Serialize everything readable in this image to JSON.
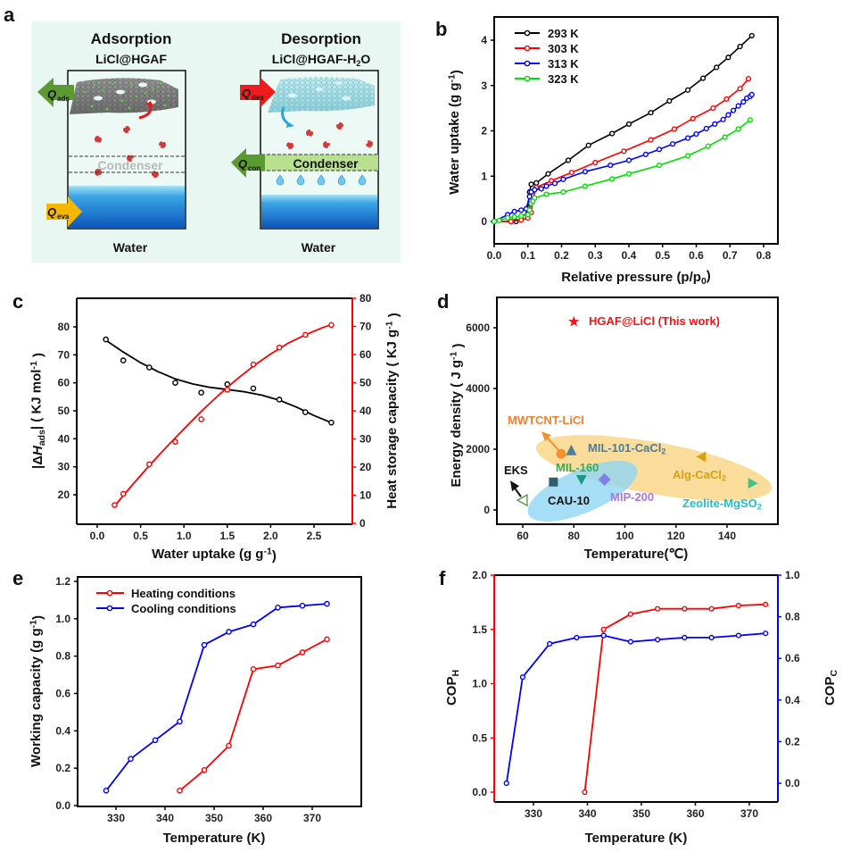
{
  "figure_labels": {
    "a": "a",
    "b": "b",
    "c": "c",
    "d": "d",
    "e": "e",
    "f": "f"
  },
  "panel_a": {
    "left": {
      "title": "Adsorption",
      "subtitle": "LiCl@HGAF",
      "q_top": "Q",
      "q_top_sub": "ads",
      "q_bottom": "Q",
      "q_bottom_sub": "eva",
      "condenser": "Condenser",
      "bottom_label": "Water"
    },
    "right": {
      "title": "Desorption",
      "subtitle": "LiCl@HGAF-H",
      "subtitle_sub": "2",
      "subtitle_tail": "O",
      "q_top": "Q",
      "q_top_sub": "des",
      "q_mid": "Q",
      "q_mid_sub": "con",
      "condenser": "Condenser",
      "bottom_label": "Water"
    },
    "colors": {
      "background": "#e8f7f1",
      "ads_arrow": "#5a9a30",
      "eva_arrow": "#f5b800",
      "des_arrow": "#ee1c1c",
      "con_arrow": "#5a9a30",
      "condenser_band": "#b9e08e",
      "water_top": "#8fd6f2",
      "water_bottom": "#0f5fc0"
    }
  },
  "chart_data": [
    {
      "id": "b",
      "type": "line",
      "xlabel": "Relative pressure (p/p",
      "xlabel_sub": "0",
      "xlabel_tail": ")",
      "ylabel": "Water uptake (g g",
      "ylabel_sup": "-1",
      "ylabel_tail": ")",
      "xlim": [
        0,
        0.85
      ],
      "ylim": [
        -0.5,
        4.5
      ],
      "xticks": [
        0.0,
        0.1,
        0.2,
        0.3,
        0.4,
        0.5,
        0.6,
        0.7,
        0.8
      ],
      "xtick_labels": [
        "0.0",
        "0.1",
        "0.2",
        "0.3",
        "0.4",
        "0.5",
        "0.6",
        "0.7",
        "0.8"
      ],
      "yticks": [
        0,
        1,
        2,
        3,
        4
      ],
      "ytick_labels": [
        "0",
        "1",
        "2",
        "3",
        "4"
      ],
      "legend_position": "top-left",
      "series": [
        {
          "name": "293 K",
          "color": "#000000",
          "x": [
            0.0,
            0.05,
            0.065,
            0.09,
            0.1,
            0.105,
            0.11,
            0.125,
            0.16,
            0.22,
            0.28,
            0.35,
            0.4,
            0.465,
            0.52,
            0.575,
            0.62,
            0.66,
            0.695,
            0.73,
            0.765
          ],
          "y": [
            0.0,
            0.0,
            0.0,
            0.1,
            0.3,
            0.65,
            0.82,
            0.85,
            1.05,
            1.35,
            1.68,
            1.94,
            2.15,
            2.4,
            2.66,
            2.9,
            3.16,
            3.4,
            3.62,
            3.86,
            4.1
          ]
        },
        {
          "name": "303 K",
          "color": "#ff0000",
          "x": [
            0.0,
            0.05,
            0.08,
            0.1,
            0.11,
            0.115,
            0.125,
            0.17,
            0.23,
            0.3,
            0.385,
            0.465,
            0.535,
            0.59,
            0.65,
            0.69,
            0.73,
            0.755
          ],
          "y": [
            0.0,
            0.0,
            0.03,
            0.08,
            0.2,
            0.5,
            0.75,
            0.9,
            1.08,
            1.3,
            1.55,
            1.8,
            2.04,
            2.27,
            2.5,
            2.7,
            2.93,
            3.15
          ]
        },
        {
          "name": "313 K",
          "color": "#0000ff",
          "x": [
            0.0,
            0.04,
            0.06,
            0.08,
            0.095,
            0.105,
            0.11,
            0.12,
            0.14,
            0.155,
            0.18,
            0.205,
            0.27,
            0.345,
            0.4,
            0.45,
            0.49,
            0.53,
            0.575,
            0.6,
            0.63,
            0.655,
            0.68,
            0.695,
            0.71,
            0.725,
            0.74,
            0.75,
            0.76,
            0.765
          ],
          "y": [
            0.0,
            0.15,
            0.22,
            0.25,
            0.28,
            0.55,
            0.65,
            0.7,
            0.72,
            0.78,
            0.84,
            0.93,
            1.1,
            1.24,
            1.35,
            1.48,
            1.59,
            1.71,
            1.84,
            1.93,
            2.05,
            2.15,
            2.25,
            2.35,
            2.45,
            2.55,
            2.64,
            2.72,
            2.76,
            2.8
          ]
        },
        {
          "name": "323 K",
          "color": "#00e000",
          "x": [
            0.0,
            0.015,
            0.04,
            0.06,
            0.08,
            0.1,
            0.105,
            0.11,
            0.115,
            0.12,
            0.155,
            0.205,
            0.27,
            0.35,
            0.4,
            0.49,
            0.575,
            0.635,
            0.685,
            0.725,
            0.76
          ],
          "y": [
            0.0,
            0.02,
            0.08,
            0.1,
            0.12,
            0.15,
            0.25,
            0.4,
            0.45,
            0.52,
            0.6,
            0.65,
            0.78,
            0.94,
            1.05,
            1.24,
            1.45,
            1.66,
            1.86,
            2.04,
            2.24
          ]
        }
      ]
    },
    {
      "id": "c",
      "type": "scatter",
      "xlabel": "Water uptake (g g",
      "xlabel_sup": "-1",
      "xlabel_tail": ")",
      "ylabel_left": "|ΔH",
      "ylabel_left_sub": "ads",
      "ylabel_left_tail": "| ( KJ mol",
      "ylabel_left_sup": "-1",
      "ylabel_left_end": " )",
      "ylabel_right": "Heat storage capacity ( KJ g",
      "ylabel_right_sup": "-1",
      "ylabel_right_tail": " )",
      "xlim": [
        -0.25,
        2.95
      ],
      "ylim_left": [
        10,
        90
      ],
      "ylim_right": [
        0,
        80
      ],
      "xticks": [
        0.0,
        0.5,
        1.0,
        1.5,
        2.0,
        2.5
      ],
      "xtick_labels": [
        "0.0",
        "0.5",
        "1.0",
        "1.5",
        "2.0",
        "2.5"
      ],
      "yticks_left": [
        20,
        30,
        40,
        50,
        60,
        70,
        80
      ],
      "ytick_left_labels": [
        "20",
        "30",
        "40",
        "50",
        "60",
        "70",
        "80"
      ],
      "yticks_right": [
        0,
        10,
        20,
        30,
        40,
        50,
        60,
        70,
        80
      ],
      "ytick_right_labels": [
        "0",
        "10",
        "20",
        "30",
        "40",
        "50",
        "60",
        "70",
        "80"
      ],
      "series": [
        {
          "name": "|ΔHads|",
          "axis": "left",
          "color": "#000000",
          "x": [
            0.1,
            0.3,
            0.6,
            0.9,
            1.2,
            1.5,
            1.8,
            2.1,
            2.4,
            2.7
          ],
          "y": [
            75.5,
            68.0,
            65.5,
            60.0,
            56.5,
            59.5,
            58.0,
            54.0,
            49.5,
            45.8
          ],
          "fit_x": [
            0.1,
            0.3,
            0.5,
            0.7,
            0.9,
            1.1,
            1.3,
            1.5,
            1.7,
            1.9,
            2.1,
            2.3,
            2.5,
            2.7
          ],
          "fit_y": [
            75.2,
            71.0,
            67.2,
            64.0,
            61.4,
            59.6,
            58.4,
            57.6,
            56.8,
            55.6,
            53.8,
            51.3,
            48.3,
            45.8
          ]
        },
        {
          "name": "Heat storage capacity",
          "axis": "right",
          "color": "#ff0000",
          "x": [
            0.2,
            0.3,
            0.6,
            0.9,
            1.2,
            1.5,
            1.8,
            2.1,
            2.4,
            2.7
          ],
          "y": [
            6.5,
            10.5,
            21.0,
            29.0,
            37.0,
            47.5,
            56.5,
            62.5,
            67.0,
            70.5
          ],
          "fit_x": [
            0.2,
            0.4,
            0.6,
            0.8,
            1.0,
            1.2,
            1.4,
            1.6,
            1.8,
            2.0,
            2.2,
            2.4,
            2.6,
            2.7
          ],
          "fit_y": [
            6.2,
            13.5,
            20.5,
            27.2,
            33.6,
            39.8,
            45.6,
            51.0,
            55.9,
            60.2,
            64.0,
            67.0,
            69.6,
            70.6
          ]
        }
      ]
    },
    {
      "id": "d",
      "type": "scatter",
      "xlabel": "Temperature(℃)",
      "ylabel": "Energy density ( J g",
      "ylabel_sup": "-1",
      "ylabel_tail": " )",
      "xlim": [
        50,
        160
      ],
      "ylim": [
        -500,
        7000
      ],
      "xticks": [
        60,
        80,
        100,
        120,
        140
      ],
      "xtick_labels": [
        "60",
        "80",
        "100",
        "120",
        "140"
      ],
      "yticks": [
        0,
        2000,
        4000,
        6000
      ],
      "ytick_labels": [
        "0",
        "2000",
        "4000",
        "6000"
      ],
      "points": [
        {
          "name": "HGAF@LiCl (This work)",
          "x": 80,
          "y": 6200,
          "marker": "star",
          "color": "#ff1010",
          "label_color": "#ff1010"
        },
        {
          "name": "MWTCNT-LiCl",
          "x": 75,
          "y": 1850,
          "marker": "circle",
          "color": "#f5902e",
          "label_color": "#f08030"
        },
        {
          "name": "MIL-101-CaCl2",
          "x": 79,
          "y": 1950,
          "marker": "triangle-up",
          "color": "#4d7fa0",
          "label_color": "#507a9a"
        },
        {
          "name": "Alg-CaCl2",
          "x": 130,
          "y": 1750,
          "marker": "triangle-left",
          "color": "#d9a010",
          "label_color": "#d9a010"
        },
        {
          "name": "Zeolite-MgSO2",
          "x": 150,
          "y": 880,
          "marker": "triangle-right",
          "color": "#3ec48a",
          "label_color": "#20c0c8"
        },
        {
          "name": "MIL-160",
          "x": 83,
          "y": 1000,
          "marker": "triangle-down",
          "color": "#1e9a80",
          "label_color": "#3aaa58"
        },
        {
          "name": "MIP-200",
          "x": 92,
          "y": 1000,
          "marker": "diamond",
          "color": "#7f80e8",
          "label_color": "#a878e0"
        },
        {
          "name": "CAU-10",
          "x": 72,
          "y": 920,
          "marker": "square",
          "color": "#2e5d6e",
          "label_color": "#111111"
        },
        {
          "name": "EKS",
          "x": 60,
          "y": 320,
          "marker": "open-triangle-left",
          "color": "#4a9a40",
          "label_color": "#111111"
        }
      ],
      "label_text": {
        "hgaf": "HGAF@LiCl (This work)",
        "mwtcnt": "MWTCNT-LiCl",
        "mil101": "MIL-101-CaCl",
        "mil101_sub": "2",
        "alg": "Alg-CaCl",
        "alg_sub": "2",
        "zeolite": "Zeolite-MgSO",
        "zeolite_sub": "2",
        "mil160": "MIL-160",
        "mip200": "MIP-200",
        "cau10": "CAU-10",
        "eks": "EKS"
      },
      "regions": [
        {
          "name": "salt-composites",
          "color": "#f8d27a"
        },
        {
          "name": "mofs",
          "color": "#8fd6f2"
        }
      ]
    },
    {
      "id": "e",
      "type": "line",
      "xlabel": "Temperature  (K)",
      "ylabel": "Working capacity (g g",
      "ylabel_sup": "-1",
      "ylabel_tail": ")",
      "xlim": [
        321,
        380
      ],
      "ylim": [
        0,
        1.2
      ],
      "xticks": [
        330,
        340,
        350,
        360,
        370
      ],
      "xtick_labels": [
        "330",
        "340",
        "350",
        "360",
        "370"
      ],
      "yticks": [
        0.0,
        0.2,
        0.4,
        0.6,
        0.8,
        1.0,
        1.2
      ],
      "ytick_labels": [
        "0.0",
        "0.2",
        "0.4",
        "0.6",
        "0.8",
        "1.0",
        "1.2"
      ],
      "legend_position": "top-left",
      "series": [
        {
          "name": "Heating conditions",
          "color": "#ff0000",
          "x": [
            343,
            348,
            353,
            358,
            363,
            368,
            373
          ],
          "y": [
            0.08,
            0.19,
            0.32,
            0.73,
            0.75,
            0.82,
            0.89
          ]
        },
        {
          "name": "Cooling conditions",
          "color": "#0000ff",
          "x": [
            328,
            333,
            338,
            343,
            348,
            353,
            358,
            363,
            368,
            373
          ],
          "y": [
            0.08,
            0.25,
            0.35,
            0.45,
            0.86,
            0.93,
            0.97,
            1.06,
            1.07,
            1.08
          ]
        }
      ]
    },
    {
      "id": "f",
      "type": "line",
      "xlabel": "Temperature  (K)",
      "ylabel_left": "COP",
      "ylabel_left_sub": "H",
      "ylabel_right": "COP",
      "ylabel_right_sub": "C",
      "xlim": [
        322,
        376
      ],
      "ylim_left": [
        -0.1,
        2.0
      ],
      "ylim_right": [
        -0.05,
        1.0
      ],
      "xticks": [
        330,
        340,
        350,
        360,
        370
      ],
      "xtick_labels": [
        "330",
        "340",
        "350",
        "360",
        "370"
      ],
      "yticks_left": [
        0.0,
        0.5,
        1.0,
        1.5,
        2.0
      ],
      "ytick_left_labels": [
        "0.0",
        "0.5",
        "1.0",
        "1.5",
        "2.0"
      ],
      "yticks_right": [
        0.0,
        0.2,
        0.4,
        0.6,
        0.8,
        1.0
      ],
      "ytick_right_labels": [
        "0.0",
        "0.2",
        "0.4",
        "0.6",
        "0.8",
        "1.0"
      ],
      "series": [
        {
          "name": "COP_H",
          "axis": "left",
          "color": "#ff0000",
          "x": [
            339.5,
            343,
            348,
            353,
            358,
            363,
            368,
            373
          ],
          "y": [
            0.0,
            1.5,
            1.64,
            1.69,
            1.69,
            1.69,
            1.72,
            1.73
          ]
        },
        {
          "name": "COP_C",
          "axis": "right",
          "color": "#0000ff",
          "x": [
            325,
            328,
            333,
            338,
            343,
            348,
            353,
            358,
            363,
            368,
            373
          ],
          "y": [
            0.0,
            0.51,
            0.67,
            0.7,
            0.71,
            0.68,
            0.69,
            0.7,
            0.7,
            0.71,
            0.72
          ]
        }
      ]
    }
  ]
}
